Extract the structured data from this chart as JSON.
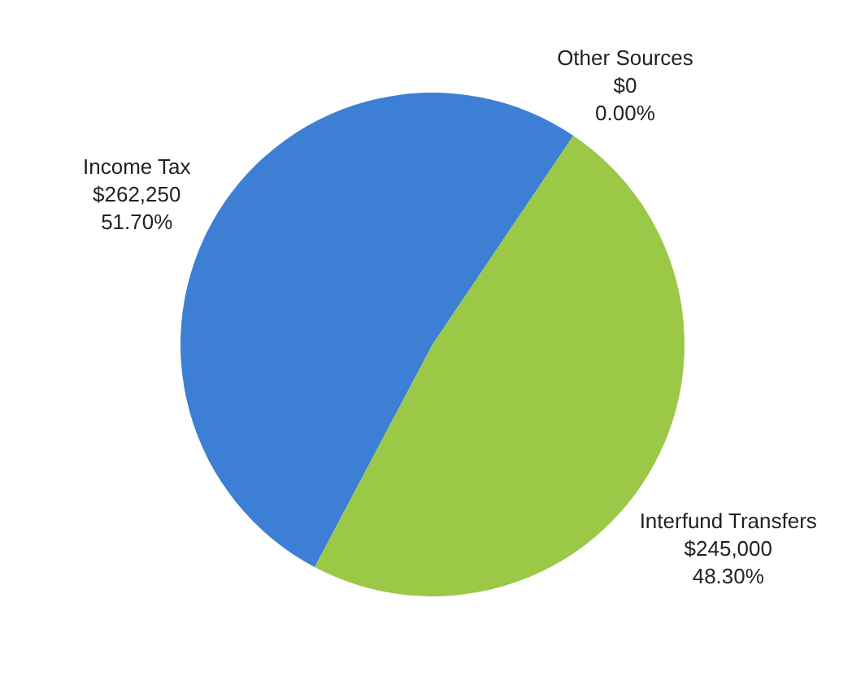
{
  "chart_data": {
    "type": "pie",
    "categories": [
      "Income Tax",
      "Interfund Transfers",
      "Other Sources"
    ],
    "values": [
      262250,
      245000,
      0
    ],
    "colors": [
      "#3c7fd4",
      "#9bc846",
      "#d9534f"
    ],
    "value_labels": [
      "$262,250\n51.70%",
      "$245,000\n48.30%",
      "$0\n0.00%"
    ]
  }
}
